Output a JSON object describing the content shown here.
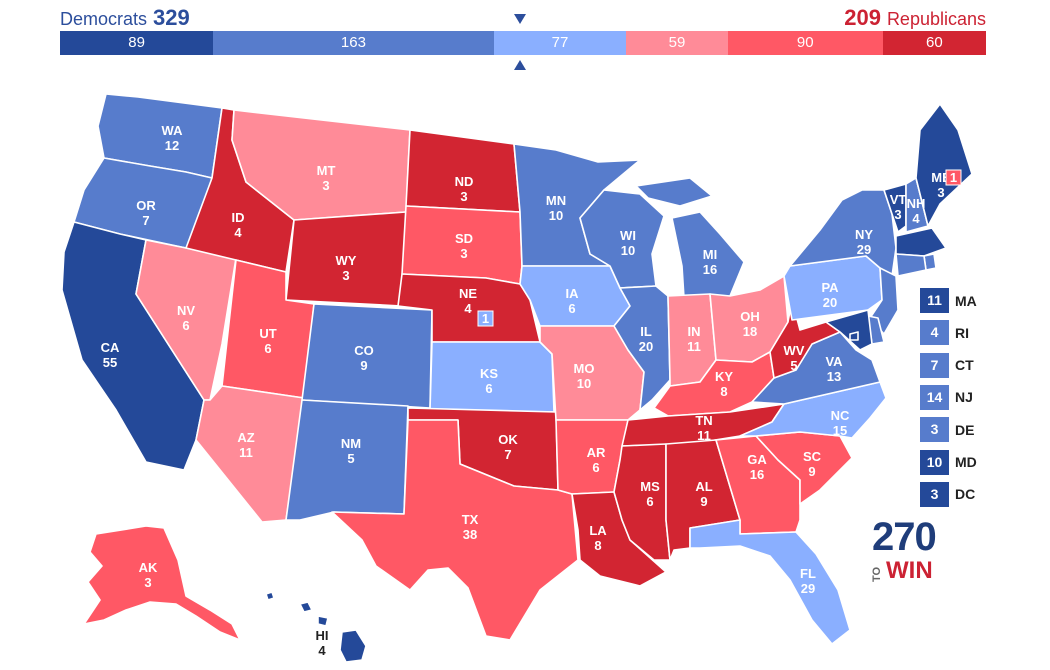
{
  "colors": {
    "safe_dem": "#244999",
    "likely_dem": "#577ccc",
    "lean_dem": "#8aafff",
    "lean_rep": "#ff8b98",
    "likely_rep": "#ff5865",
    "safe_rep": "#d22532"
  },
  "header": {
    "dem_label": "Democrats",
    "dem_total": "329",
    "rep_total": "209",
    "rep_label": "Republicans"
  },
  "bar": [
    {
      "value": 89,
      "label": "89",
      "rating": "safe_dem"
    },
    {
      "value": 163,
      "label": "163",
      "rating": "likely_dem"
    },
    {
      "value": 77,
      "label": "77",
      "rating": "lean_dem"
    },
    {
      "value": 59,
      "label": "59",
      "rating": "lean_rep"
    },
    {
      "value": 90,
      "label": "90",
      "rating": "likely_rep"
    },
    {
      "value": 60,
      "label": "60",
      "rating": "safe_rep"
    }
  ],
  "states": [
    {
      "abbr": "WA",
      "ev": "12",
      "rating": "likely_dem"
    },
    {
      "abbr": "OR",
      "ev": "7",
      "rating": "likely_dem"
    },
    {
      "abbr": "CA",
      "ev": "55",
      "rating": "safe_dem"
    },
    {
      "abbr": "NV",
      "ev": "6",
      "rating": "lean_rep"
    },
    {
      "abbr": "ID",
      "ev": "4",
      "rating": "safe_rep"
    },
    {
      "abbr": "MT",
      "ev": "3",
      "rating": "lean_rep"
    },
    {
      "abbr": "WY",
      "ev": "3",
      "rating": "safe_rep"
    },
    {
      "abbr": "UT",
      "ev": "6",
      "rating": "likely_rep"
    },
    {
      "abbr": "AZ",
      "ev": "11",
      "rating": "lean_rep"
    },
    {
      "abbr": "CO",
      "ev": "9",
      "rating": "likely_dem"
    },
    {
      "abbr": "NM",
      "ev": "5",
      "rating": "likely_dem"
    },
    {
      "abbr": "ND",
      "ev": "3",
      "rating": "safe_rep"
    },
    {
      "abbr": "SD",
      "ev": "3",
      "rating": "likely_rep"
    },
    {
      "abbr": "NE",
      "ev": "4",
      "rating": "safe_rep"
    },
    {
      "abbr": "KS",
      "ev": "6",
      "rating": "lean_dem"
    },
    {
      "abbr": "OK",
      "ev": "7",
      "rating": "safe_rep"
    },
    {
      "abbr": "TX",
      "ev": "38",
      "rating": "likely_rep"
    },
    {
      "abbr": "MN",
      "ev": "10",
      "rating": "likely_dem"
    },
    {
      "abbr": "IA",
      "ev": "6",
      "rating": "lean_dem"
    },
    {
      "abbr": "MO",
      "ev": "10",
      "rating": "lean_rep"
    },
    {
      "abbr": "AR",
      "ev": "6",
      "rating": "likely_rep"
    },
    {
      "abbr": "LA",
      "ev": "8",
      "rating": "safe_rep"
    },
    {
      "abbr": "WI",
      "ev": "10",
      "rating": "likely_dem"
    },
    {
      "abbr": "IL",
      "ev": "20",
      "rating": "likely_dem"
    },
    {
      "abbr": "MI",
      "ev": "16",
      "rating": "likely_dem"
    },
    {
      "abbr": "IN",
      "ev": "11",
      "rating": "lean_rep"
    },
    {
      "abbr": "OH",
      "ev": "18",
      "rating": "lean_rep"
    },
    {
      "abbr": "KY",
      "ev": "8",
      "rating": "likely_rep"
    },
    {
      "abbr": "TN",
      "ev": "11",
      "rating": "safe_rep"
    },
    {
      "abbr": "MS",
      "ev": "6",
      "rating": "safe_rep"
    },
    {
      "abbr": "AL",
      "ev": "9",
      "rating": "safe_rep"
    },
    {
      "abbr": "GA",
      "ev": "16",
      "rating": "likely_rep"
    },
    {
      "abbr": "FL",
      "ev": "29",
      "rating": "lean_dem"
    },
    {
      "abbr": "SC",
      "ev": "9",
      "rating": "likely_rep"
    },
    {
      "abbr": "NC",
      "ev": "15",
      "rating": "lean_dem"
    },
    {
      "abbr": "VA",
      "ev": "13",
      "rating": "likely_dem"
    },
    {
      "abbr": "WV",
      "ev": "5",
      "rating": "safe_rep"
    },
    {
      "abbr": "PA",
      "ev": "20",
      "rating": "lean_dem"
    },
    {
      "abbr": "NY",
      "ev": "29",
      "rating": "likely_dem"
    },
    {
      "abbr": "VT",
      "ev": "3",
      "rating": "safe_dem"
    },
    {
      "abbr": "NH",
      "ev": "4",
      "rating": "likely_dem"
    },
    {
      "abbr": "ME",
      "ev": "3",
      "rating": "safe_dem"
    },
    {
      "abbr": "AK",
      "ev": "3",
      "rating": "likely_rep"
    },
    {
      "abbr": "HI",
      "ev": "4",
      "rating": "safe_dem"
    }
  ],
  "districts": [
    {
      "value": "1",
      "rating": "lean_dem",
      "state": "NE"
    },
    {
      "value": "1",
      "rating": "likely_rep",
      "state": "ME"
    }
  ],
  "small_states": [
    {
      "abbr": "MA",
      "ev": "11",
      "rating": "safe_dem"
    },
    {
      "abbr": "RI",
      "ev": "4",
      "rating": "likely_dem"
    },
    {
      "abbr": "CT",
      "ev": "7",
      "rating": "likely_dem"
    },
    {
      "abbr": "NJ",
      "ev": "14",
      "rating": "likely_dem"
    },
    {
      "abbr": "DE",
      "ev": "3",
      "rating": "likely_dem"
    },
    {
      "abbr": "MD",
      "ev": "10",
      "rating": "safe_dem"
    },
    {
      "abbr": "DC",
      "ev": "3",
      "rating": "safe_dem"
    }
  ],
  "logo": {
    "number": "270",
    "to": "TO",
    "win": "WIN"
  }
}
